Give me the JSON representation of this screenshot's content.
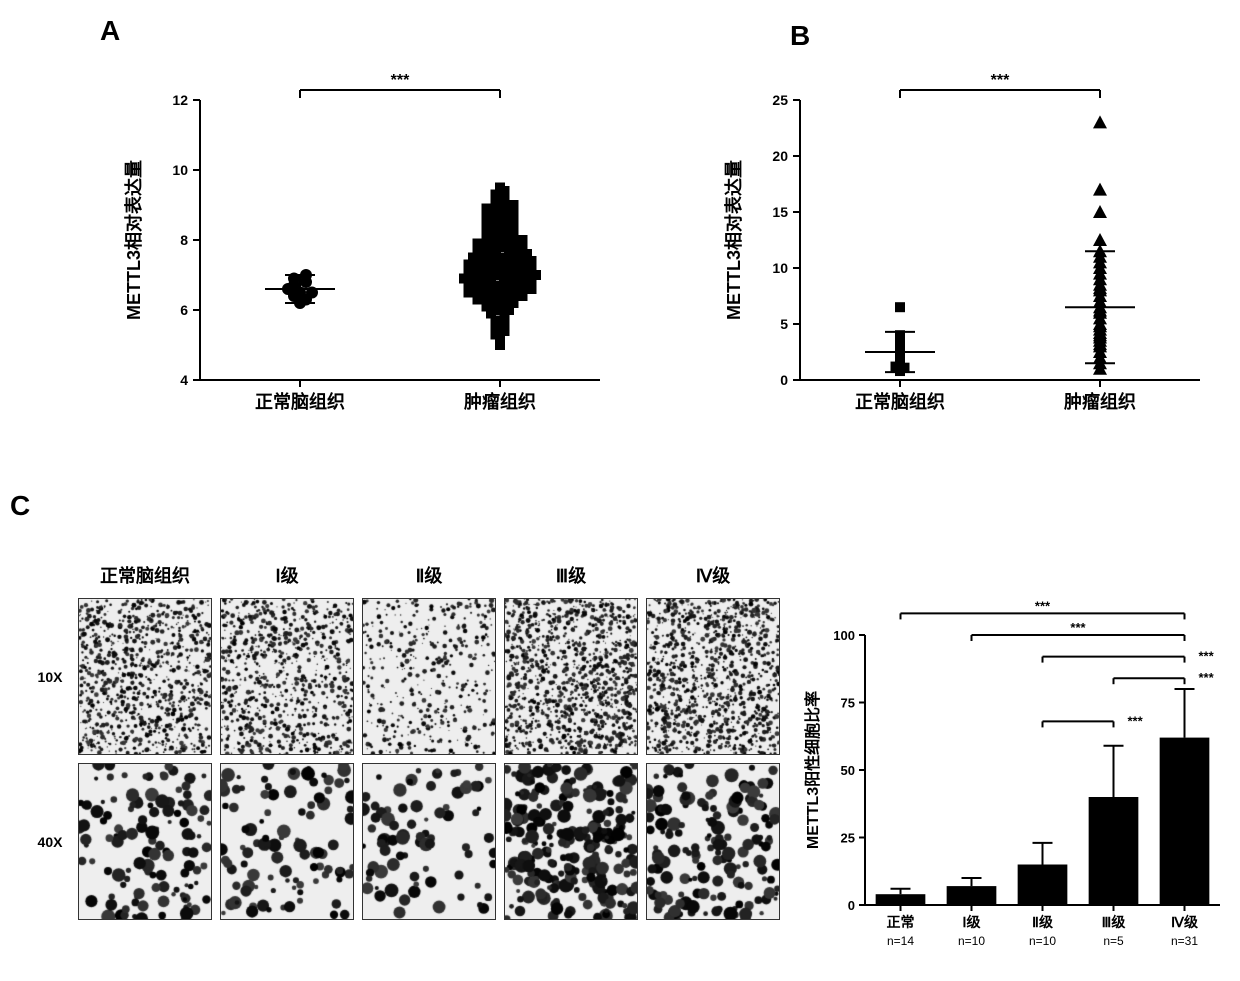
{
  "panelA": {
    "label": "A",
    "ylabel": "METTL3相对表达量",
    "ylim": [
      4,
      12
    ],
    "yticks": [
      4,
      6,
      8,
      10,
      12
    ],
    "categories": [
      "正常脑组织",
      "肿瘤组织"
    ],
    "significance": "***",
    "series": [
      {
        "name": "normal",
        "marker": "circle",
        "color": "#000000",
        "mean": 6.6,
        "err": 0.4,
        "points": [
          6.4,
          6.6,
          6.3,
          6.7,
          6.9,
          6.5,
          6.2,
          7.0,
          6.8,
          6.5
        ]
      },
      {
        "name": "tumor",
        "marker": "square",
        "color": "#000000",
        "mean": 7.2,
        "err": 1.0,
        "points": [
          5.0,
          5.2,
          5.3,
          5.4,
          5.5,
          5.6,
          5.7,
          5.8,
          5.9,
          6.0,
          6.0,
          6.1,
          6.1,
          6.2,
          6.2,
          6.3,
          6.3,
          6.3,
          6.4,
          6.4,
          6.4,
          6.5,
          6.5,
          6.5,
          6.5,
          6.6,
          6.6,
          6.6,
          6.6,
          6.7,
          6.7,
          6.7,
          6.7,
          6.8,
          6.8,
          6.8,
          6.8,
          6.9,
          6.9,
          6.9,
          6.9,
          7.0,
          7.0,
          7.0,
          7.0,
          7.0,
          7.1,
          7.1,
          7.1,
          7.1,
          7.2,
          7.2,
          7.2,
          7.2,
          7.3,
          7.3,
          7.3,
          7.3,
          7.4,
          7.4,
          7.4,
          7.4,
          7.5,
          7.5,
          7.5,
          7.5,
          7.6,
          7.6,
          7.6,
          7.7,
          7.7,
          7.7,
          7.8,
          7.8,
          7.8,
          7.9,
          7.9,
          7.9,
          8.0,
          8.0,
          8.0,
          8.1,
          8.1,
          8.2,
          8.2,
          8.3,
          8.3,
          8.4,
          8.4,
          8.5,
          8.5,
          8.6,
          8.6,
          8.7,
          8.7,
          8.8,
          8.8,
          8.9,
          8.9,
          9.0,
          9.0,
          9.1,
          9.2,
          9.3,
          9.4,
          9.5
        ]
      }
    ],
    "label_fontsize": 18,
    "tick_fontsize": 14,
    "category_fontsize": 18
  },
  "panelB": {
    "label": "B",
    "ylabel": "METTL3相对表达量",
    "ylim": [
      0,
      25
    ],
    "yticks": [
      0,
      5,
      10,
      15,
      20,
      25
    ],
    "categories": [
      "正常脑组织",
      "肿瘤组织"
    ],
    "significance": "***",
    "series": [
      {
        "name": "normal",
        "marker": "square",
        "color": "#000000",
        "mean": 2.5,
        "err": 1.8,
        "points": [
          1.0,
          1.5,
          1.2,
          2.0,
          2.2,
          3.0,
          3.5,
          4.0,
          6.5,
          1.8,
          0.8,
          1.1
        ]
      },
      {
        "name": "tumor",
        "marker": "triangle",
        "color": "#000000",
        "mean": 6.5,
        "err": 5.0,
        "points": [
          1.0,
          1.5,
          2.0,
          2.5,
          3.0,
          3.2,
          3.5,
          3.8,
          4.0,
          4.2,
          4.5,
          4.8,
          5.0,
          5.5,
          6.0,
          6.2,
          6.5,
          7.0,
          7.5,
          8.0,
          8.2,
          8.5,
          9.0,
          9.5,
          10.0,
          10.5,
          11.0,
          11.5,
          12.5,
          15.0,
          17.0,
          23.0
        ]
      }
    ],
    "label_fontsize": 18,
    "tick_fontsize": 14,
    "category_fontsize": 18
  },
  "panelC": {
    "label": "C",
    "histology": {
      "columns": [
        "正常脑组织",
        "Ⅰ级",
        "Ⅱ级",
        "Ⅲ级",
        "Ⅳ级"
      ],
      "magnifications": [
        "10X",
        "40X"
      ],
      "label_fontsize": 18,
      "mag_fontsize": 14
    },
    "barChart": {
      "ylabel": "METTL3阳性细胞比率",
      "ylim": [
        0,
        100
      ],
      "yticks": [
        0,
        25,
        50,
        75,
        100
      ],
      "categories": [
        "正常",
        "Ⅰ级",
        "Ⅱ级",
        "Ⅲ级",
        "Ⅳ级"
      ],
      "n_labels": [
        "n=14",
        "n=10",
        "n=10",
        "n=5",
        "n=31"
      ],
      "values": [
        4,
        7,
        15,
        40,
        62
      ],
      "errors": [
        2,
        3,
        8,
        19,
        18
      ],
      "bar_color": "#000000",
      "bar_width": 0.7,
      "significance_pairs": [
        {
          "from": 0,
          "to": 4,
          "label": "***",
          "y": 108
        },
        {
          "from": 1,
          "to": 4,
          "label": "***",
          "y": 100
        },
        {
          "from": 2,
          "to": 4,
          "label": "***",
          "y": 92
        },
        {
          "from": 3,
          "to": 4,
          "label": "***",
          "y": 84
        },
        {
          "from": 2,
          "to": 3,
          "label": "***",
          "y": 68
        }
      ],
      "label_fontsize": 16,
      "tick_fontsize": 13,
      "category_fontsize": 14
    }
  },
  "colors": {
    "background": "#ffffff",
    "axis": "#000000",
    "marker": "#000000",
    "bar": "#000000"
  }
}
